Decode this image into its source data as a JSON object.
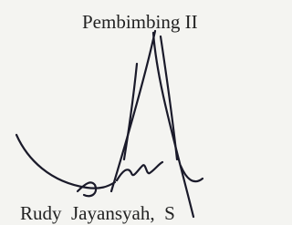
{
  "header": {
    "title": "Pembimbing II"
  },
  "signatory": {
    "name": "Rudy  Jayansyah,  S"
  }
}
